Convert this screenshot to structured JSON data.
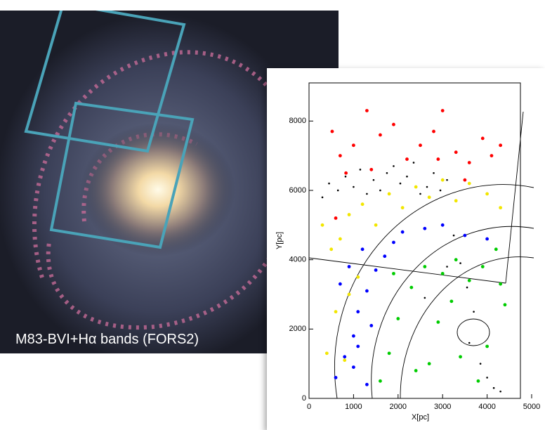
{
  "caption": "M83-BVI+Hα bands (FORS2)",
  "chart_data": {
    "type": "scatter",
    "xlabel": "X[pc]",
    "ylabel": "Y[pc]",
    "xlim": [
      0,
      5000
    ],
    "ylim": [
      0,
      9100
    ],
    "xticks": [
      0,
      1000,
      2000,
      3000,
      4000,
      5000
    ],
    "yticks": [
      0,
      2000,
      4000,
      6000,
      8000
    ],
    "series": [
      {
        "color": "#000000",
        "x": [
          300,
          450,
          650,
          820,
          1000,
          1150,
          1300,
          1450,
          1600,
          1750,
          1900,
          2050,
          2200,
          2350,
          2500,
          2650,
          2800,
          2950,
          3100,
          3250,
          3400,
          3550,
          3700,
          3850,
          4000,
          4150,
          4300,
          2600,
          3100,
          3600
        ],
        "values": [
          5800,
          6200,
          6000,
          6400,
          6100,
          6600,
          5900,
          6300,
          6000,
          6500,
          6700,
          6200,
          6400,
          6800,
          5900,
          6100,
          6500,
          6000,
          6300,
          4700,
          3900,
          3200,
          2500,
          1000,
          600,
          300,
          200,
          2900,
          3800,
          1600
        ]
      },
      {
        "color": "#ff0000",
        "x": [
          520,
          700,
          830,
          1000,
          1300,
          1600,
          1900,
          2200,
          2500,
          2800,
          3000,
          3300,
          3600,
          3900,
          4100,
          4300,
          1400,
          2900,
          600,
          3500
        ],
        "values": [
          7700,
          7000,
          6500,
          7300,
          8300,
          7600,
          7900,
          6900,
          7300,
          7700,
          8300,
          7100,
          6800,
          7500,
          7000,
          7300,
          6600,
          6900,
          5200,
          6300
        ]
      },
      {
        "color": "#f2e600",
        "x": [
          300,
          500,
          700,
          900,
          1200,
          1500,
          1800,
          2100,
          2400,
          2700,
          3000,
          3300,
          3600,
          4000,
          4300,
          600,
          900,
          400,
          800,
          1100
        ],
        "values": [
          5000,
          4300,
          4600,
          5300,
          5600,
          5000,
          5900,
          5500,
          6100,
          5800,
          6300,
          5700,
          6200,
          5900,
          5500,
          2500,
          3000,
          1300,
          1100,
          3500
        ]
      },
      {
        "color": "#0000ff",
        "x": [
          600,
          800,
          1000,
          1100,
          1300,
          1500,
          1700,
          1900,
          2100,
          1200,
          900,
          700,
          1000,
          1300,
          2600,
          3000,
          3500,
          4000,
          1400,
          1100
        ],
        "values": [
          600,
          1200,
          1800,
          2500,
          3100,
          3700,
          4100,
          4500,
          4800,
          4300,
          3800,
          3300,
          900,
          400,
          4900,
          5000,
          4700,
          4600,
          2100,
          1500
        ]
      },
      {
        "color": "#00cc00",
        "x": [
          1600,
          1800,
          2000,
          2300,
          2600,
          3000,
          3300,
          3600,
          3900,
          4200,
          4400,
          2400,
          2900,
          3400,
          4000,
          1900,
          2700,
          3200,
          3800,
          4300
        ],
        "values": [
          500,
          1300,
          2300,
          3200,
          3800,
          3600,
          4000,
          3400,
          3800,
          4300,
          2700,
          800,
          2200,
          1200,
          1500,
          3600,
          1000,
          2800,
          500,
          3300
        ]
      }
    ]
  }
}
